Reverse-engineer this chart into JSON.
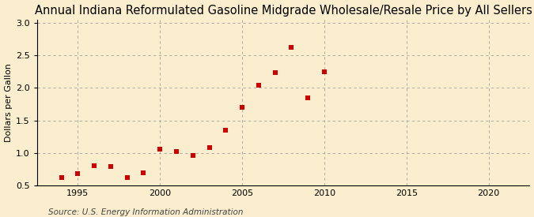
{
  "title": "Annual Indiana Reformulated Gasoline Midgrade Wholesale/Resale Price by All Sellers",
  "ylabel": "Dollars per Gallon",
  "source": "Source: U.S. Energy Information Administration",
  "years": [
    1994,
    1995,
    1996,
    1997,
    1998,
    1999,
    2000,
    2001,
    2002,
    2003,
    2004,
    2005,
    2006,
    2007,
    2008,
    2009,
    2010
  ],
  "values": [
    0.62,
    0.68,
    0.81,
    0.79,
    0.62,
    0.7,
    1.06,
    1.03,
    0.96,
    1.09,
    1.35,
    1.7,
    2.04,
    2.23,
    2.62,
    1.85,
    2.24
  ],
  "marker_color": "#cc0000",
  "marker_size": 4,
  "xlim": [
    1992.5,
    2022.5
  ],
  "ylim": [
    0.5,
    3.05
  ],
  "yticks": [
    0.5,
    1.0,
    1.5,
    2.0,
    2.5,
    3.0
  ],
  "xticks": [
    1995,
    2000,
    2005,
    2010,
    2015,
    2020
  ],
  "bg_color": "#faeece",
  "grid_color": "#999999",
  "title_fontsize": 10.5,
  "label_fontsize": 8,
  "tick_fontsize": 8,
  "source_fontsize": 7.5
}
